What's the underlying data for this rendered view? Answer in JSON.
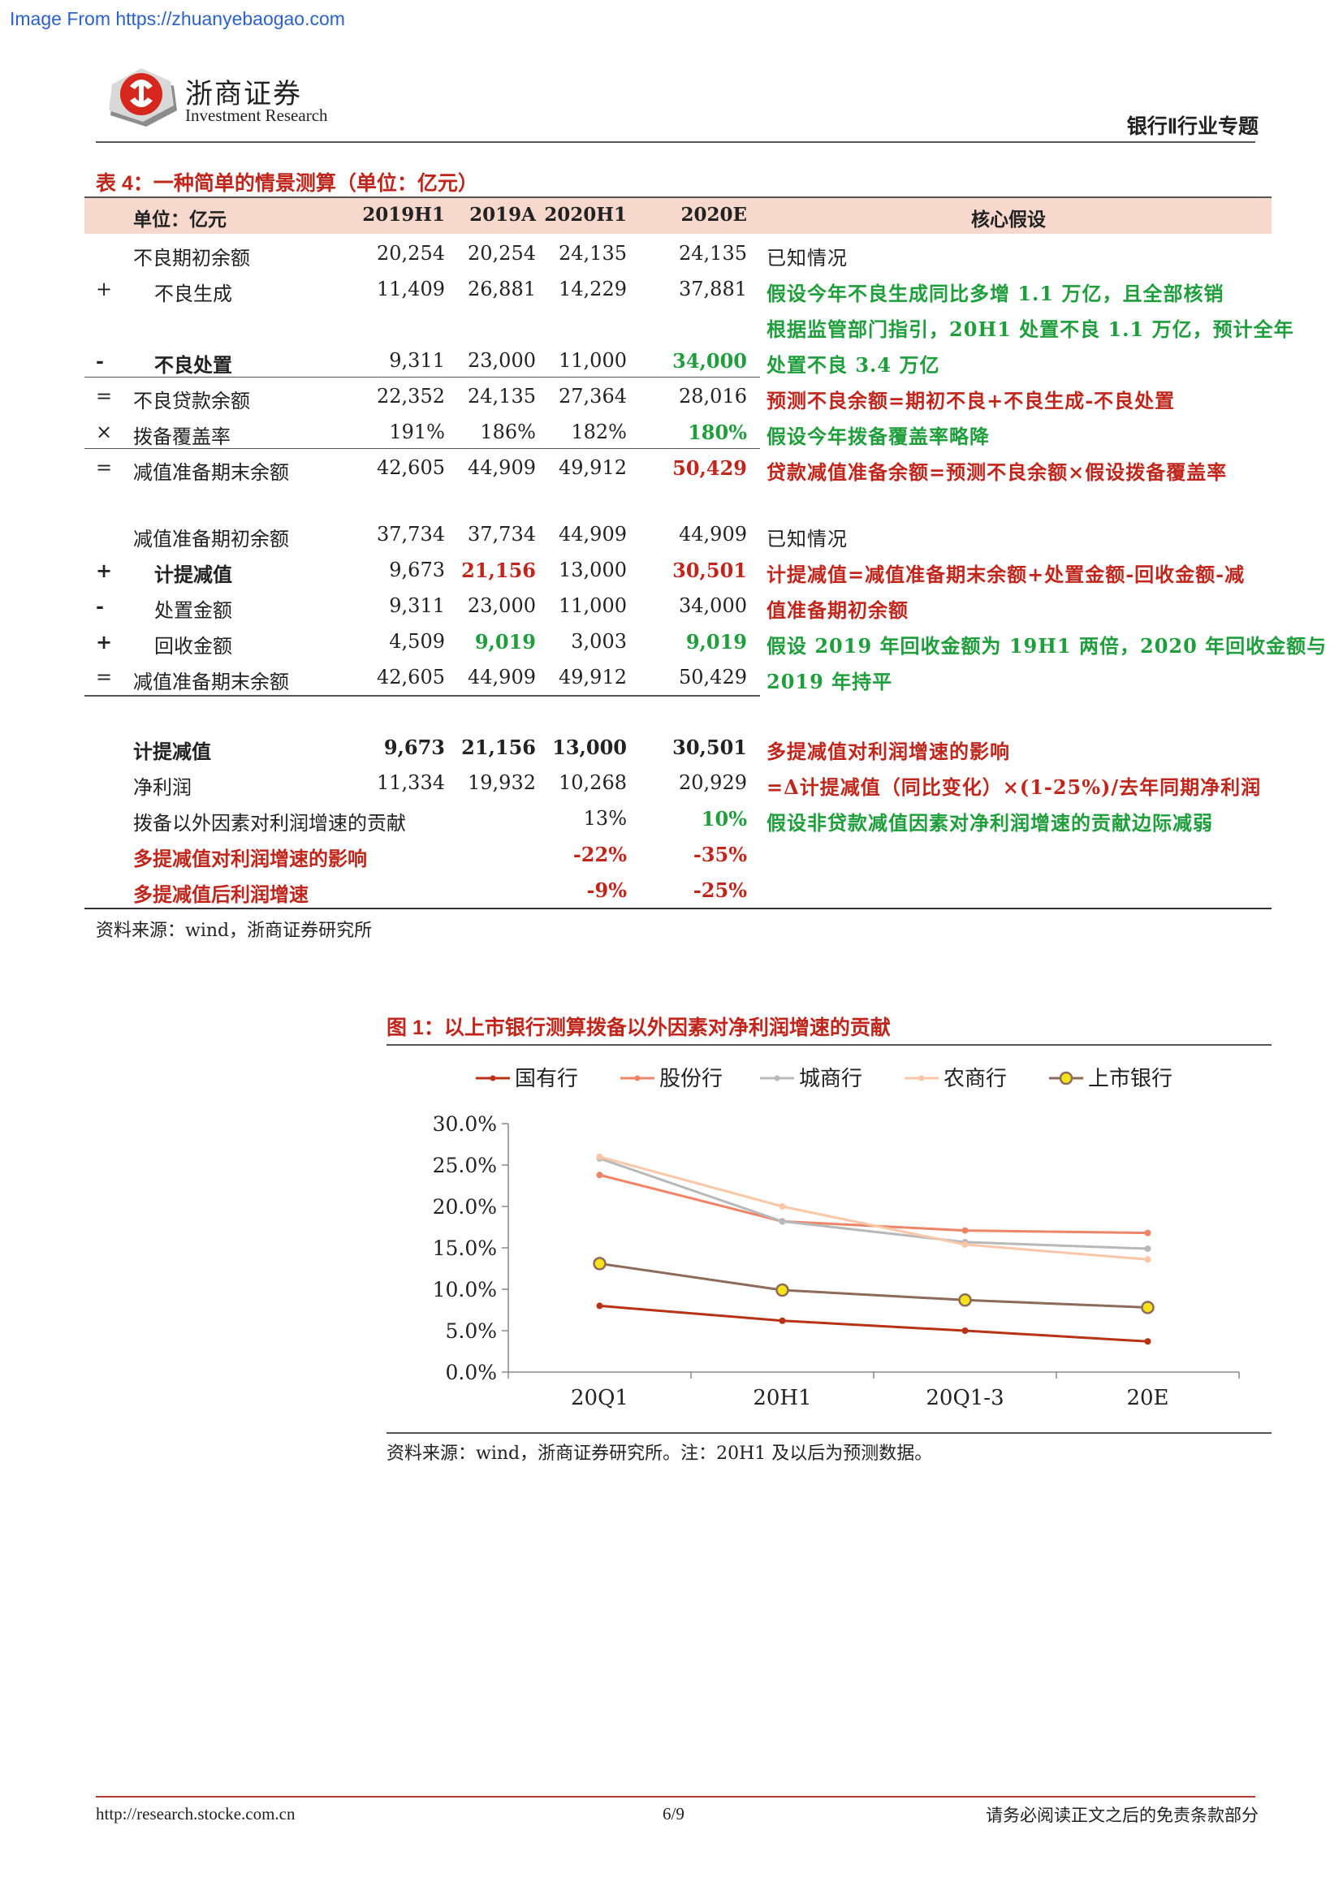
{
  "source_link": "Image From https://zhuanyebaogao.com",
  "logo": {
    "cn": "浙商证券",
    "en": "Investment Research"
  },
  "header_right": "银行Ⅱ行业专题",
  "table": {
    "title": "表 4：一种简单的情景测算（单位：亿元）",
    "headers": [
      "单位：亿元",
      "2019H1",
      "2019A",
      "2020H1",
      "2020E",
      "核心假设"
    ],
    "rows": [
      {
        "sym": "",
        "label": "不良期初余额",
        "v": [
          "20,254",
          "20,254",
          "24,135",
          "24,135"
        ],
        "note": "已知情况"
      },
      {
        "sym": "+",
        "label": "不良生成",
        "v": [
          "11,409",
          "26,881",
          "14,229",
          "37,881"
        ],
        "note": "假设今年不良生成同比多增 1.1 万亿，且全部核销"
      },
      {
        "sym": "",
        "label": "",
        "v": [
          "",
          "",
          "",
          ""
        ],
        "note": "根据监管部门指引，20H1 处置不良 1.1 万亿，预计全年"
      },
      {
        "sym": "-",
        "label": "不良处置",
        "v": [
          "9,311",
          "23,000",
          "11,000",
          "34,000"
        ],
        "note": "处置不良 3.4 万亿"
      },
      {
        "sym": "=",
        "label": "不良贷款余额",
        "v": [
          "22,352",
          "24,135",
          "27,364",
          "28,016"
        ],
        "note": "预测不良余额=期初不良+不良生成-不良处置"
      },
      {
        "sym": "×",
        "label": "拨备覆盖率",
        "v": [
          "191%",
          "186%",
          "182%",
          "180%"
        ],
        "note": "假设今年拨备覆盖率略降"
      },
      {
        "sym": "=",
        "label": "减值准备期末余额",
        "v": [
          "42,605",
          "44,909",
          "49,912",
          "50,429"
        ],
        "note": "贷款减值准备余额=预测不良余额×假设拨备覆盖率"
      },
      {
        "sym": "",
        "label": "减值准备期初余额",
        "v": [
          "37,734",
          "37,734",
          "44,909",
          "44,909"
        ],
        "note": "已知情况"
      },
      {
        "sym": "+",
        "label": "计提减值",
        "v": [
          "9,673",
          "21,156",
          "13,000",
          "30,501"
        ],
        "note": "计提减值=减值准备期末余额+处置金额-回收金额-减"
      },
      {
        "sym": "-",
        "label": "处置金额",
        "v": [
          "9,311",
          "23,000",
          "11,000",
          "34,000"
        ],
        "note": "值准备期初余额"
      },
      {
        "sym": "+",
        "label": "回收金额",
        "v": [
          "4,509",
          "9,019",
          "3,003",
          "9,019"
        ],
        "note": "假设 2019 年回收金额为 19H1 两倍，2020 年回收金额与"
      },
      {
        "sym": "=",
        "label": "减值准备期末余额",
        "v": [
          "42,605",
          "44,909",
          "49,912",
          "50,429"
        ],
        "note": "2019 年持平"
      },
      {
        "sym": "",
        "label": "计提减值",
        "v": [
          "9,673",
          "21,156",
          "13,000",
          "30,501"
        ],
        "note": "多提减值对利润增速的影响"
      },
      {
        "sym": "",
        "label": "净利润",
        "v": [
          "11,334",
          "19,932",
          "10,268",
          "20,929"
        ],
        "note": "=Δ计提减值（同比变化）×(1-25%)/去年同期净利润"
      },
      {
        "sym": "",
        "label": "拨备以外因素对利润增速的贡献",
        "v": [
          "",
          "",
          "13%",
          "10%"
        ],
        "note": "假设非贷款减值因素对净利润增速的贡献边际减弱"
      },
      {
        "sym": "",
        "label": "多提减值对利润增速的影响",
        "v": [
          "",
          "",
          "-22%",
          "-35%"
        ],
        "note": ""
      },
      {
        "sym": "",
        "label": "多提减值后利润增速",
        "v": [
          "",
          "",
          "-9%",
          "-25%"
        ],
        "note": ""
      }
    ],
    "source": "资料来源：wind，浙商证券研究所"
  },
  "figure": {
    "title": "图 1：以上市银行测算拨备以外因素对净利润增速的贡献",
    "source": "资料来源：wind，浙商证券研究所。注：20H1 及以后为预测数据。"
  },
  "chart_data": {
    "type": "line",
    "x": [
      "20Q1",
      "20H1",
      "20Q1-3",
      "20E"
    ],
    "ylim": [
      0,
      0.3
    ],
    "yticks": [
      "0.0%",
      "5.0%",
      "10.0%",
      "15.0%",
      "20.0%",
      "25.0%",
      "30.0%"
    ],
    "legend_position": "top",
    "series": [
      {
        "name": "国有行",
        "color": "#b83216",
        "values": [
          0.08,
          0.062,
          0.05,
          0.037
        ]
      },
      {
        "name": "股份行",
        "color": "#ef8566",
        "values": [
          0.238,
          0.182,
          0.171,
          0.168
        ]
      },
      {
        "name": "城商行",
        "color": "#b8b8b8",
        "values": [
          0.258,
          0.182,
          0.157,
          0.149
        ]
      },
      {
        "name": "农商行",
        "color": "#f9c7a8",
        "values": [
          0.26,
          0.2,
          0.154,
          0.136
        ]
      },
      {
        "name": "上市银行",
        "color": "#8e6a5a",
        "marker": "#f4e319",
        "values": [
          0.131,
          0.099,
          0.087,
          0.078
        ]
      }
    ]
  },
  "footer": {
    "url": "http://research.stocke.com.cn",
    "page": "6/9",
    "disclaimer": "请务必阅读正文之后的免责条款部分"
  }
}
